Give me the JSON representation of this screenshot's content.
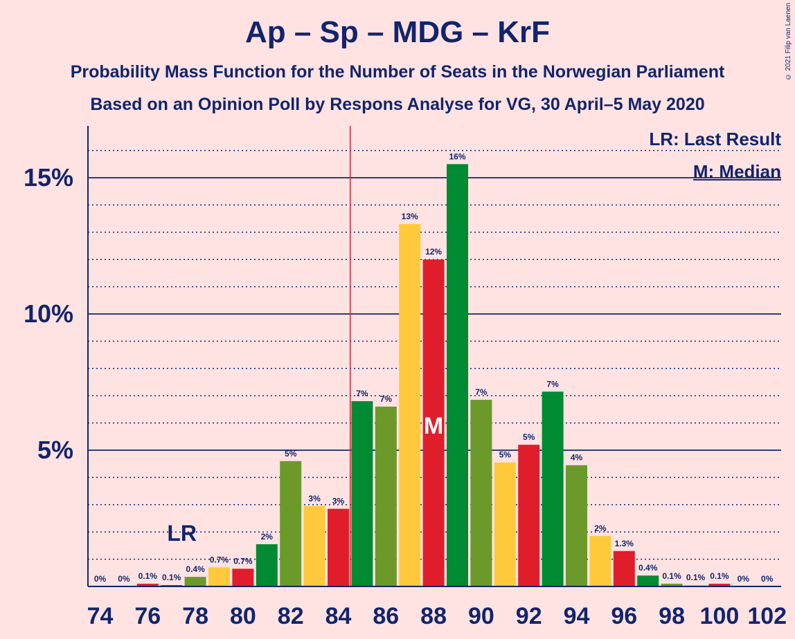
{
  "title": "Ap – Sp – MDG – KrF",
  "subtitle1": "Probability Mass Function for the Number of Seats in the Norwegian Parliament",
  "subtitle2": "Based on an Opinion Poll by Respons Analyse for VG, 30 April–5 May 2020",
  "copyright": "© 2021 Filip van Laenen",
  "legend": {
    "lr": "LR: Last Result",
    "median": "M: Median"
  },
  "colors": {
    "background": "#FFE3E3",
    "text": "#12246B",
    "red": "#E01E2B",
    "green": "#008A32",
    "olive": "#6B9A2A",
    "yellow": "#FFC93C",
    "lastResultLine": "#E01E2B"
  },
  "chart_data": {
    "type": "bar",
    "x": [
      74,
      75,
      76,
      77,
      78,
      79,
      80,
      81,
      82,
      83,
      84,
      85,
      86,
      87,
      88,
      89,
      90,
      91,
      92,
      93,
      94,
      95,
      96,
      97,
      98,
      99,
      100,
      101,
      102
    ],
    "values": [
      0,
      0,
      0.1,
      0.05,
      0.35,
      0.7,
      0.65,
      1.55,
      4.6,
      2.95,
      2.85,
      6.8,
      6.6,
      13.3,
      12.0,
      15.5,
      6.85,
      4.55,
      5.2,
      7.15,
      4.45,
      1.85,
      1.3,
      0.4,
      0.1,
      0.05,
      0.1,
      0,
      0
    ],
    "labels": [
      "0%",
      "0%",
      "0.1%",
      "0.1%",
      "0.4%",
      "0.7%",
      "0.7%",
      "2%",
      "5%",
      "3%",
      "3%",
      "7%",
      "7%",
      "13%",
      "12%",
      "16%",
      "7%",
      "5%",
      "5%",
      "7%",
      "4%",
      "2%",
      "1.3%",
      "0.4%",
      "0.1%",
      "0.1%",
      "0.1%",
      "0%",
      "0%"
    ],
    "bar_colors": [
      "red",
      "green",
      "red",
      "green",
      "olive",
      "yellow",
      "red",
      "green",
      "olive",
      "yellow",
      "red",
      "green",
      "olive",
      "yellow",
      "red",
      "green",
      "olive",
      "yellow",
      "red",
      "green",
      "olive",
      "yellow",
      "red",
      "green",
      "olive",
      "yellow",
      "red",
      "green",
      "olive"
    ],
    "x_ticks": [
      74,
      76,
      78,
      80,
      82,
      84,
      86,
      88,
      90,
      92,
      94,
      96,
      98,
      100,
      102
    ],
    "y_ticks": [
      5,
      10,
      15
    ],
    "y_tick_labels": [
      "5%",
      "10%",
      "15%"
    ],
    "ylim": [
      0,
      16.9
    ],
    "last_result": 85,
    "last_result_label": "LR",
    "last_result_label_x": 77,
    "median": 88,
    "median_label": "M",
    "grid": true
  }
}
